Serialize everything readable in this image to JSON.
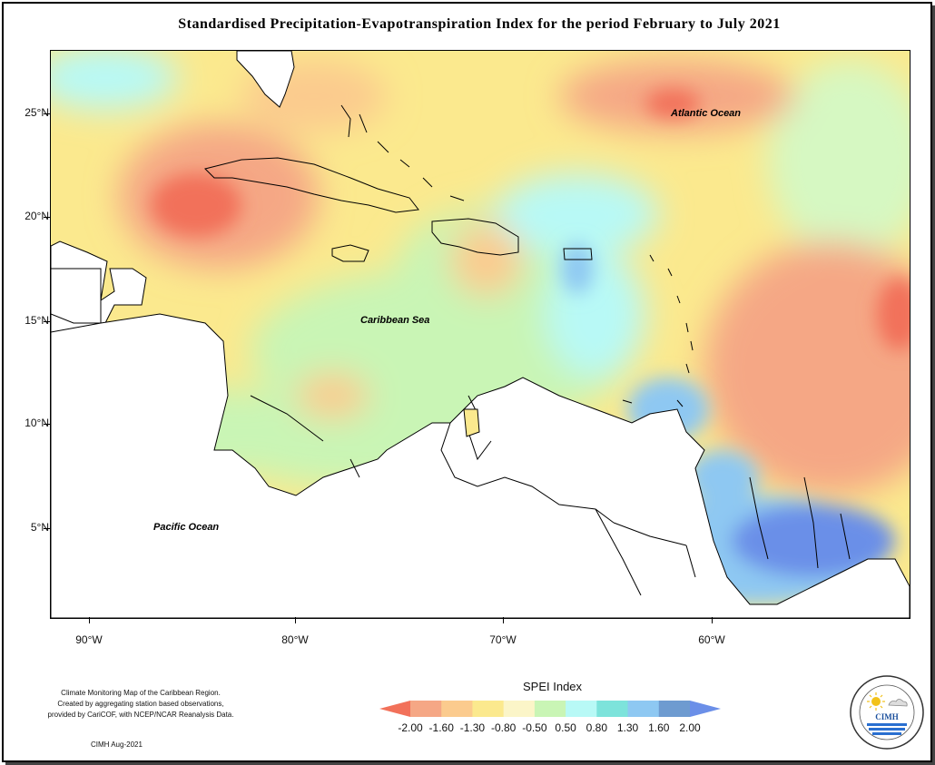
{
  "title": "Standardised Precipitation-Evapotranspiration Index for the period February to July 2021",
  "lat_labels": [
    "25°N",
    "20°N",
    "15°N",
    "10°N",
    "5°N"
  ],
  "lon_labels": [
    "90°W",
    "80°W",
    "70°W",
    "60°W"
  ],
  "map_labels": {
    "atlantic": "Atlantic Ocean",
    "caribbean": "Caribbean Sea",
    "pacific": "Pacific Ocean"
  },
  "footnote": {
    "line1": "Climate Monitoring Map of the Caribbean Region.",
    "line2": "Created by aggregating station based observations,",
    "line3": "provided by CariCOF, with NCEP/NCAR Reanalysis Data."
  },
  "credit": "CIMH Aug-2021",
  "legend": {
    "title": "SPEI Index",
    "ticks": [
      "-2.00",
      "-1.60",
      "-1.30",
      "-0.80",
      "-0.50",
      "0.50",
      "0.80",
      "1.30",
      "1.60",
      "2.00"
    ],
    "colors": [
      "#f2715a",
      "#f5a785",
      "#fbcb8e",
      "#fbe98e",
      "#fbf5c8",
      "#c9f5b5",
      "#b8f9f6",
      "#7de3db",
      "#8ec8f2",
      "#6e9bd0",
      "#6b8fe8"
    ]
  },
  "logo": {
    "text": "CIMH",
    "ring_text": "Caribbean Institute for Meteorology and Hydrology"
  }
}
